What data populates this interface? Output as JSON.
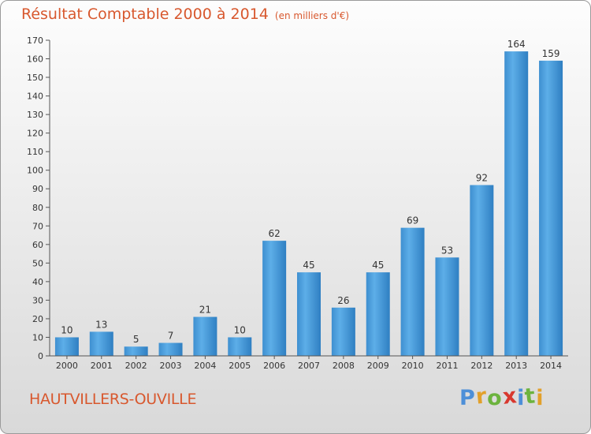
{
  "title": "Résultat Comptable 2000 à 2014",
  "subtitle": "(en milliers d'€)",
  "commune": "HAUTVILLERS-OUVILLE",
  "logo": {
    "letters": [
      "P",
      "r",
      "o",
      "x",
      "i",
      "t",
      "i"
    ],
    "colors": [
      "#4d8fd8",
      "#e2a02a",
      "#6cb33e",
      "#d8382e",
      "#4d8fd8",
      "#6cb33e",
      "#e2a02a"
    ]
  },
  "chart_data": {
    "type": "bar",
    "title": "Résultat Comptable 2000 à 2014",
    "subtitle": "(en milliers d'€)",
    "categories": [
      "2000",
      "2001",
      "2002",
      "2003",
      "2004",
      "2005",
      "2006",
      "2007",
      "2008",
      "2009",
      "2010",
      "2011",
      "2012",
      "2013",
      "2014"
    ],
    "values": [
      10,
      13,
      5,
      7,
      21,
      10,
      62,
      45,
      26,
      45,
      69,
      53,
      92,
      164,
      159
    ],
    "ylim": [
      0,
      170
    ],
    "yticks": [
      0,
      10,
      20,
      30,
      40,
      50,
      60,
      70,
      80,
      90,
      100,
      110,
      120,
      130,
      140,
      150,
      160,
      170
    ],
    "xlabel": "",
    "ylabel": "",
    "grid": false,
    "bar_color": "#3d94d6"
  }
}
